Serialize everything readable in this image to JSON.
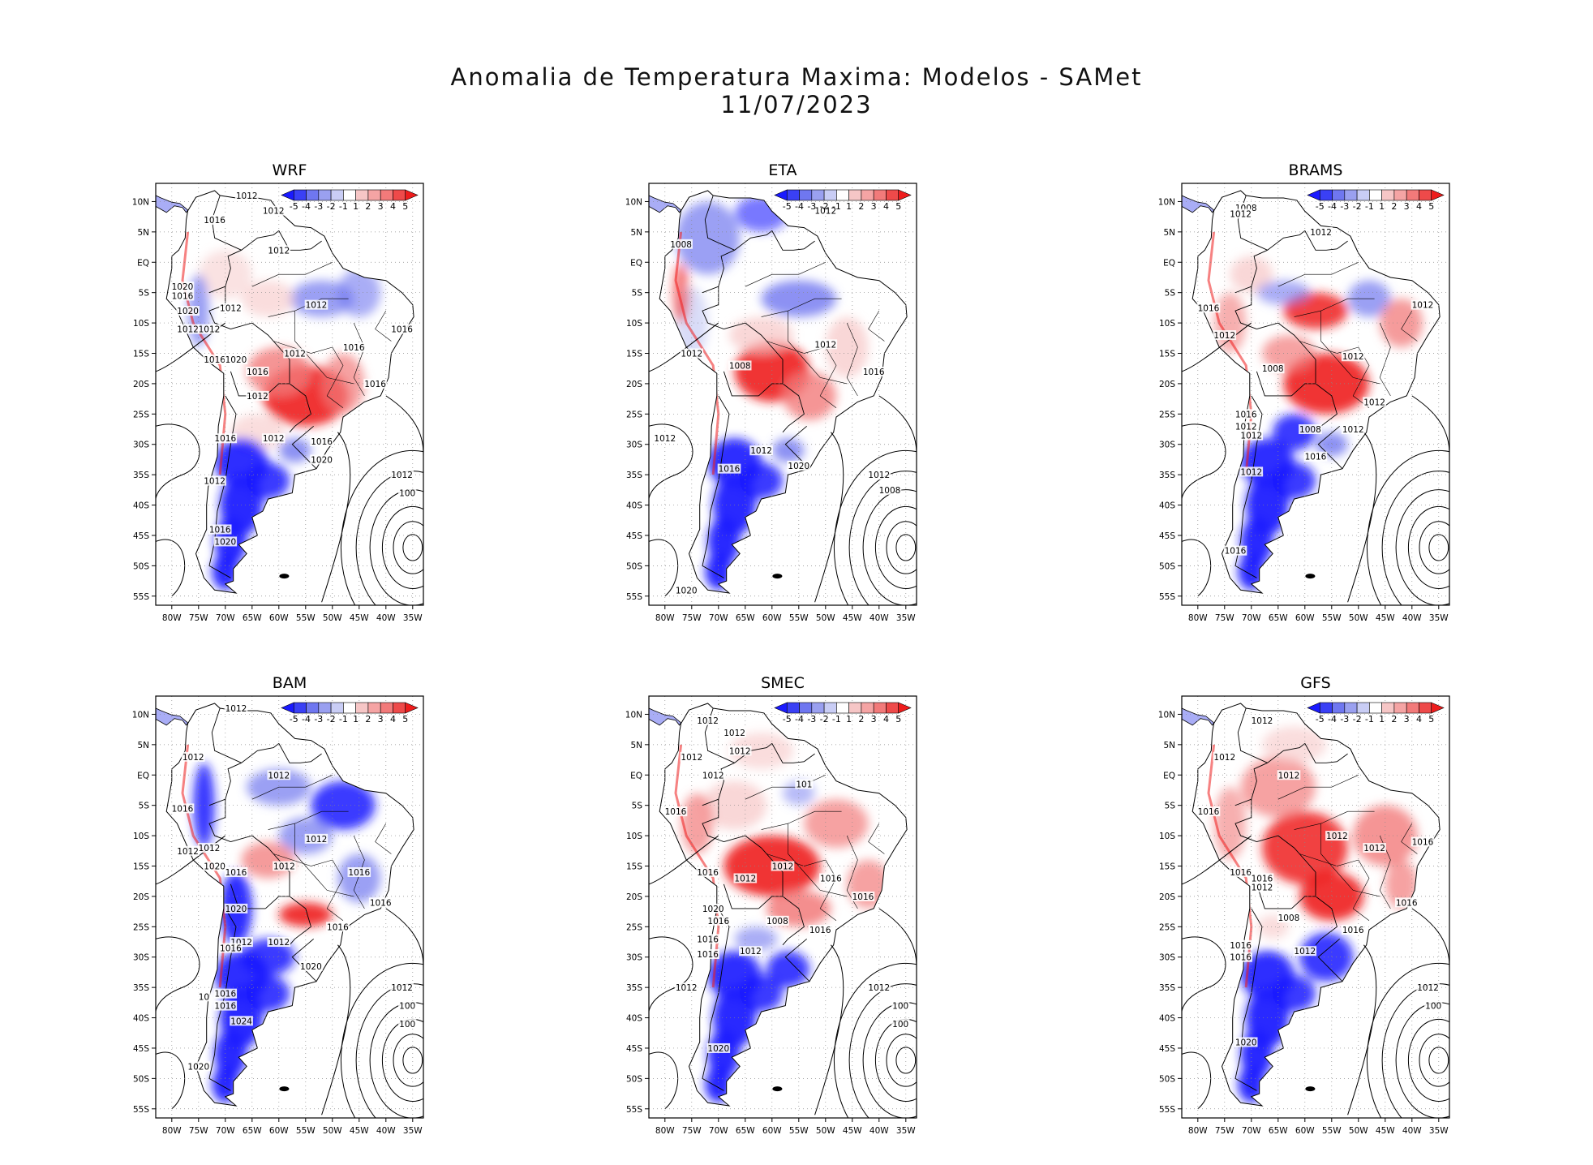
{
  "figure": {
    "title": "Anomalia de Temperatura Maxima: Modelos - SAMet",
    "date": "11/07/2023"
  },
  "colors": {
    "cold_strong": "#1a1aff",
    "cold_mid": "#6f77f0",
    "cold_light": "#c9cdf5",
    "warm_light": "#f6c6c6",
    "warm_mid": "#f27a7a",
    "warm_strong": "#ee1c1c",
    "land_neutral": "#ffffff",
    "contour": "#000000"
  },
  "colorbar": {
    "labels": [
      "-5",
      "-4",
      "-3",
      "-2",
      "-1",
      "1",
      "2",
      "3",
      "4",
      "5"
    ],
    "colors": [
      "#1a1aff",
      "#3a40f5",
      "#6f77f0",
      "#9aa0f0",
      "#c9cdf5",
      "#ffffff",
      "#f6c6c6",
      "#f5a4a4",
      "#f27a7a",
      "#ee4a4a",
      "#ee1c1c"
    ]
  },
  "axes": {
    "lat_labels": [
      "10N",
      "5N",
      "EQ",
      "5S",
      "10S",
      "15S",
      "20S",
      "25S",
      "30S",
      "35S",
      "40S",
      "45S",
      "50S",
      "55S"
    ],
    "lon_labels": [
      "80W",
      "75W",
      "70W",
      "65W",
      "60W",
      "55W",
      "50W",
      "45W",
      "40W",
      "35W"
    ]
  },
  "panels": [
    {
      "name": "WRF",
      "pattern": "wrf",
      "labels": [
        {
          "t": "1012",
          "lon": -66,
          "lat": 11
        },
        {
          "t": "1012",
          "lon": -61,
          "lat": 8.5
        },
        {
          "t": "1016",
          "lon": -72,
          "lat": 7
        },
        {
          "t": "1012",
          "lon": -60,
          "lat": 2
        },
        {
          "t": "1020",
          "lon": -78,
          "lat": -4
        },
        {
          "t": "1016",
          "lon": -78,
          "lat": -5.5
        },
        {
          "t": "1020",
          "lon": -77,
          "lat": -8
        },
        {
          "t": "1012",
          "lon": -69,
          "lat": -7.5
        },
        {
          "t": "1012",
          "lon": -53,
          "lat": -7
        },
        {
          "t": "1016",
          "lon": -37,
          "lat": -11
        },
        {
          "t": "1012",
          "lon": -77,
          "lat": -11
        },
        {
          "t": "1012",
          "lon": -73,
          "lat": -11
        },
        {
          "t": "1012",
          "lon": -57,
          "lat": -15
        },
        {
          "t": "1016",
          "lon": -46,
          "lat": -14
        },
        {
          "t": "1016",
          "lon": -72,
          "lat": -16
        },
        {
          "t": "1020",
          "lon": -68,
          "lat": -16
        },
        {
          "t": "1016",
          "lon": -64,
          "lat": -18
        },
        {
          "t": "1016",
          "lon": -42,
          "lat": -20
        },
        {
          "t": "1012",
          "lon": -64,
          "lat": -22
        },
        {
          "t": "1016",
          "lon": -70,
          "lat": -29
        },
        {
          "t": "1012",
          "lon": -61,
          "lat": -29
        },
        {
          "t": "1016",
          "lon": -52,
          "lat": -29.5
        },
        {
          "t": "1020",
          "lon": -52,
          "lat": -32.5
        },
        {
          "t": "1012",
          "lon": -72,
          "lat": -36
        },
        {
          "t": "1012",
          "lon": -37,
          "lat": -35
        },
        {
          "t": "100",
          "lon": -36,
          "lat": -38
        },
        {
          "t": "1016",
          "lon": -71,
          "lat": -44
        },
        {
          "t": "1020",
          "lon": -70,
          "lat": -46
        }
      ]
    },
    {
      "name": "ETA",
      "pattern": "eta",
      "labels": [
        {
          "t": "1012",
          "lon": -50,
          "lat": 8.5
        },
        {
          "t": "1008",
          "lon": -77,
          "lat": 3
        },
        {
          "t": "1012",
          "lon": -75,
          "lat": -15
        },
        {
          "t": "1008",
          "lon": -66,
          "lat": -17
        },
        {
          "t": "1012",
          "lon": -50,
          "lat": -13.5
        },
        {
          "t": "1016",
          "lon": -41,
          "lat": -18
        },
        {
          "t": "1012",
          "lon": -80,
          "lat": -29
        },
        {
          "t": "1012",
          "lon": -62,
          "lat": -31
        },
        {
          "t": "1020",
          "lon": -55,
          "lat": -33.5
        },
        {
          "t": "1016",
          "lon": -68,
          "lat": -34
        },
        {
          "t": "1012",
          "lon": -40,
          "lat": -35
        },
        {
          "t": "1008",
          "lon": -38,
          "lat": -37.5
        },
        {
          "t": "1020",
          "lon": -76,
          "lat": -54
        }
      ]
    },
    {
      "name": "BRAMS",
      "pattern": "brams",
      "labels": [
        {
          "t": "1008",
          "lon": -71,
          "lat": 9
        },
        {
          "t": "1012",
          "lon": -72,
          "lat": 8
        },
        {
          "t": "1012",
          "lon": -57,
          "lat": 5
        },
        {
          "t": "1016",
          "lon": -78,
          "lat": -7.5
        },
        {
          "t": "1012",
          "lon": -38,
          "lat": -7
        },
        {
          "t": "1012",
          "lon": -75,
          "lat": -12
        },
        {
          "t": "1012",
          "lon": -51,
          "lat": -15.5
        },
        {
          "t": "1008",
          "lon": -66,
          "lat": -17.5
        },
        {
          "t": "1012",
          "lon": -47,
          "lat": -23
        },
        {
          "t": "1016",
          "lon": -71,
          "lat": -25
        },
        {
          "t": "1012",
          "lon": -71,
          "lat": -27
        },
        {
          "t": "1012",
          "lon": -70,
          "lat": -28.5
        },
        {
          "t": "1008",
          "lon": -59,
          "lat": -27.5
        },
        {
          "t": "1012",
          "lon": -51,
          "lat": -27.5
        },
        {
          "t": "1016",
          "lon": -58,
          "lat": -32
        },
        {
          "t": "1012",
          "lon": -70,
          "lat": -34.5
        },
        {
          "t": "1016",
          "lon": -73,
          "lat": -47.5
        }
      ]
    },
    {
      "name": "BAM",
      "pattern": "bam",
      "labels": [
        {
          "t": "1012",
          "lon": -68,
          "lat": 11
        },
        {
          "t": "1012",
          "lon": -76,
          "lat": 3
        },
        {
          "t": "1012",
          "lon": -60,
          "lat": 0
        },
        {
          "t": "1016",
          "lon": -78,
          "lat": -5.5
        },
        {
          "t": "1012",
          "lon": -53,
          "lat": -10.5
        },
        {
          "t": "1012",
          "lon": -73,
          "lat": -12
        },
        {
          "t": "1012",
          "lon": -77,
          "lat": -12.5
        },
        {
          "t": "1020",
          "lon": -72,
          "lat": -15
        },
        {
          "t": "1016",
          "lon": -68,
          "lat": -16
        },
        {
          "t": "1012",
          "lon": -59,
          "lat": -15
        },
        {
          "t": "1016",
          "lon": -45,
          "lat": -16
        },
        {
          "t": "1016",
          "lon": -41,
          "lat": -21
        },
        {
          "t": "1020",
          "lon": -68,
          "lat": -22
        },
        {
          "t": "1016",
          "lon": -49,
          "lat": -25
        },
        {
          "t": "1012",
          "lon": -67,
          "lat": -27.5
        },
        {
          "t": "1012",
          "lon": -60,
          "lat": -27.5
        },
        {
          "t": "1016",
          "lon": -69,
          "lat": -28.5
        },
        {
          "t": "1020",
          "lon": -54,
          "lat": -31.5
        },
        {
          "t": "10",
          "lon": -74,
          "lat": -36.5
        },
        {
          "t": "1016",
          "lon": -70,
          "lat": -36
        },
        {
          "t": "1016",
          "lon": -70,
          "lat": -38
        },
        {
          "t": "1024",
          "lon": -67,
          "lat": -40.5
        },
        {
          "t": "1012",
          "lon": -37,
          "lat": -35
        },
        {
          "t": "100",
          "lon": -36,
          "lat": -38
        },
        {
          "t": "100",
          "lon": -36,
          "lat": -41
        },
        {
          "t": "1020",
          "lon": -75,
          "lat": -48
        }
      ]
    },
    {
      "name": "SMEC",
      "pattern": "smec",
      "labels": [
        {
          "t": "1012",
          "lon": -72,
          "lat": 9
        },
        {
          "t": "1012",
          "lon": -67,
          "lat": 7
        },
        {
          "t": "1012",
          "lon": -75,
          "lat": 3
        },
        {
          "t": "1012",
          "lon": -66,
          "lat": 4
        },
        {
          "t": "1012",
          "lon": -71,
          "lat": 0
        },
        {
          "t": "101",
          "lon": -54,
          "lat": -1.5
        },
        {
          "t": "1016",
          "lon": -78,
          "lat": -6
        },
        {
          "t": "1012",
          "lon": -58,
          "lat": -15
        },
        {
          "t": "1016",
          "lon": -72,
          "lat": -16
        },
        {
          "t": "1012",
          "lon": -65,
          "lat": -17
        },
        {
          "t": "1016",
          "lon": -49,
          "lat": -17
        },
        {
          "t": "1016",
          "lon": -43,
          "lat": -20
        },
        {
          "t": "1020",
          "lon": -71,
          "lat": -22
        },
        {
          "t": "1008",
          "lon": -59,
          "lat": -24
        },
        {
          "t": "1016",
          "lon": -70,
          "lat": -24
        },
        {
          "t": "1016",
          "lon": -51,
          "lat": -25.5
        },
        {
          "t": "1016",
          "lon": -72,
          "lat": -27
        },
        {
          "t": "1012",
          "lon": -64,
          "lat": -29
        },
        {
          "t": "1016",
          "lon": -72,
          "lat": -29.5
        },
        {
          "t": "1012",
          "lon": -76,
          "lat": -35
        },
        {
          "t": "1012",
          "lon": -40,
          "lat": -35
        },
        {
          "t": "100",
          "lon": -36,
          "lat": -38
        },
        {
          "t": "100",
          "lon": -36,
          "lat": -41
        },
        {
          "t": "1020",
          "lon": -70,
          "lat": -45
        }
      ]
    },
    {
      "name": "GFS",
      "pattern": "gfs",
      "labels": [
        {
          "t": "1012",
          "lon": -68,
          "lat": 9
        },
        {
          "t": "1012",
          "lon": -75,
          "lat": 3
        },
        {
          "t": "1012",
          "lon": -63,
          "lat": 0
        },
        {
          "t": "1016",
          "lon": -78,
          "lat": -6
        },
        {
          "t": "1012",
          "lon": -54,
          "lat": -10
        },
        {
          "t": "1012",
          "lon": -47,
          "lat": -12
        },
        {
          "t": "1016",
          "lon": -38,
          "lat": -11
        },
        {
          "t": "1016",
          "lon": -72,
          "lat": -16
        },
        {
          "t": "1016",
          "lon": -68,
          "lat": -17
        },
        {
          "t": "1012",
          "lon": -68,
          "lat": -18.5
        },
        {
          "t": "1016",
          "lon": -41,
          "lat": -21
        },
        {
          "t": "1008",
          "lon": -63,
          "lat": -23.5
        },
        {
          "t": "1016",
          "lon": -51,
          "lat": -25.5
        },
        {
          "t": "1016",
          "lon": -72,
          "lat": -28
        },
        {
          "t": "1016",
          "lon": -72,
          "lat": -30
        },
        {
          "t": "1012",
          "lon": -60,
          "lat": -29
        },
        {
          "t": "1012",
          "lon": -37,
          "lat": -35
        },
        {
          "t": "100",
          "lon": -36,
          "lat": -38
        },
        {
          "t": "1020",
          "lon": -71,
          "lat": -44
        }
      ]
    }
  ]
}
